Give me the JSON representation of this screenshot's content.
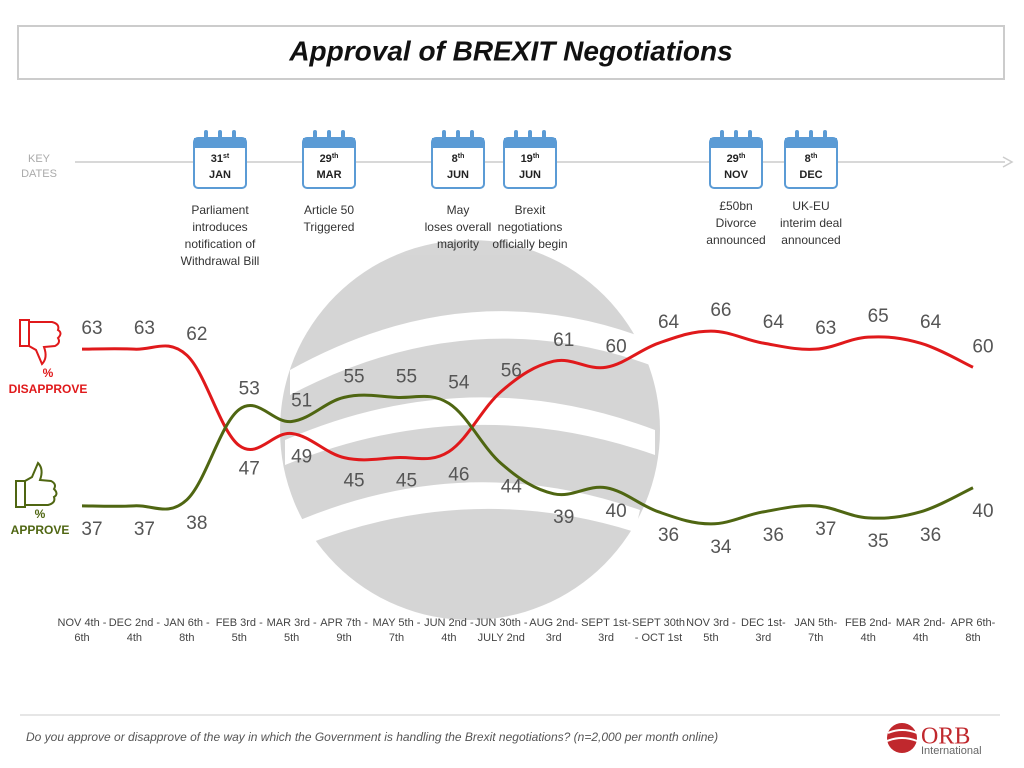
{
  "chart_data": {
    "type": "line",
    "title": "Approval of BREXIT Negotiations",
    "key_dates_label": "KEY DATES",
    "key_dates": [
      {
        "day": "31",
        "suffix": "st",
        "month": "JAN",
        "text": [
          "Parliament",
          "introduces",
          "notification of",
          "Withdrawal Bill"
        ]
      },
      {
        "day": "29",
        "suffix": "th",
        "month": "MAR",
        "text": [
          "Article 50",
          "Triggered"
        ]
      },
      {
        "day": "8",
        "suffix": "th",
        "month": "JUN",
        "text": [
          "May",
          "loses overall",
          "majority"
        ]
      },
      {
        "day": "19",
        "suffix": "th",
        "month": "JUN",
        "text": [
          "Brexit",
          "negotiations",
          "officially begin"
        ]
      },
      {
        "day": "29",
        "suffix": "th",
        "month": "NOV",
        "text": [
          "£50bn",
          "Divorce",
          "announced"
        ]
      },
      {
        "day": "8",
        "suffix": "th",
        "month": "DEC",
        "text": [
          "UK-EU",
          "interim deal",
          "announced"
        ]
      }
    ],
    "categories": [
      "NOV 4th - 6th",
      "DEC 2nd - 4th",
      "JAN 6th - 8th",
      "FEB 3rd - 5th",
      "MAR 3rd - 5th",
      "APR 7th - 9th",
      "MAY 5th - 7th",
      "JUN 2nd - 4th",
      "JUN 30th - JULY 2nd",
      "AUG 2nd-3rd",
      "SEPT 1st-3rd",
      "SEPT 30th - OCT 1st",
      "NOV 3rd - 5th",
      "DEC 1st-3rd",
      "JAN 5th-7th",
      "FEB 2nd-4th",
      "MAR 2nd-4th",
      "APR 6th-8th"
    ],
    "series": [
      {
        "name": "% DISAPPROVE",
        "color": "#e0191b",
        "values": [
          63,
          63,
          62,
          47,
          49,
          45,
          45,
          46,
          56,
          61,
          60,
          64,
          66,
          64,
          63,
          65,
          64,
          60
        ]
      },
      {
        "name": "% APPROVE",
        "color": "#4f6612",
        "values": [
          37,
          37,
          38,
          53,
          51,
          55,
          55,
          54,
          44,
          39,
          40,
          36,
          34,
          36,
          37,
          35,
          36,
          40
        ]
      }
    ],
    "ylim": [
      30,
      70
    ],
    "footnote": "Do you approve or disapprove of the way in which the Government is handling the Brexit negotiations? (n=2,000 per month online)",
    "logo": {
      "name": "ORB",
      "sub": "International"
    }
  }
}
